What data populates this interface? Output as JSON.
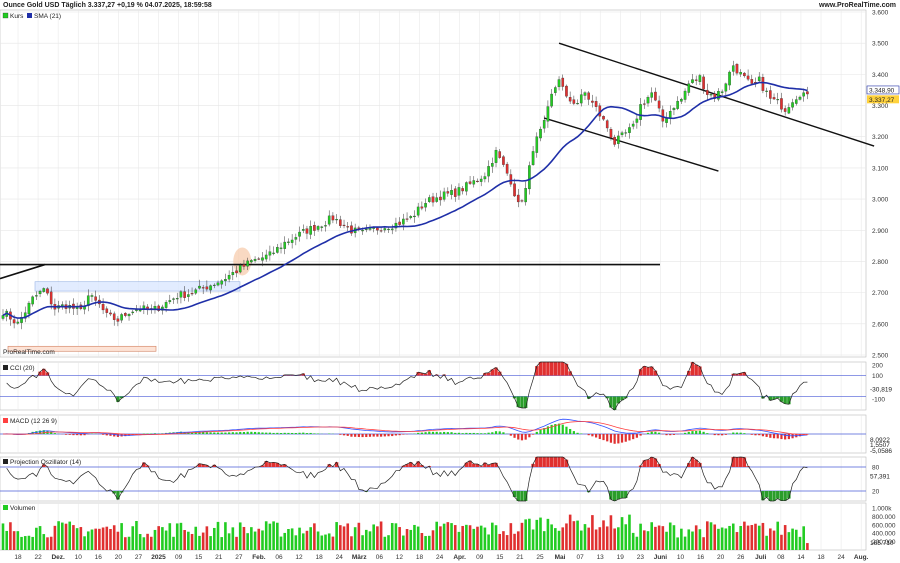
{
  "header": {
    "title": "Ounce Gold USD Täglich 3.337,27 +0,19 % 04.07.2025, 18:59:58",
    "brand": "www.ProRealTime.com"
  },
  "colors": {
    "up": "#22cc22",
    "down": "#e03030",
    "sma": "#1f2fa8",
    "grid": "#e6e6e6",
    "axis_bg": "#ffffff",
    "osc_line": "#222222",
    "band": "#4a5bd8",
    "macd_line": "#3050ff",
    "signal_line": "#ff4040",
    "last_price": "#ffd23c",
    "sma_badge": "#ffffff"
  },
  "watermark": "ProRealTime.com",
  "panels": {
    "price": {
      "legend": [
        "Kurs",
        "SMA (21)"
      ],
      "yticks": [
        "3.600",
        "3.500",
        "3.400",
        "3.300",
        "3.200",
        "3.100",
        "3.000",
        "2.900",
        "2.800",
        "2.700",
        "2.600",
        "2.500"
      ],
      "last_price_label": "3.337,27",
      "sma_label": "3.348,90"
    },
    "cci": {
      "legend": "CCI (20)",
      "yticks": [
        "200",
        "100",
        "-100"
      ],
      "value_label": "-30,819"
    },
    "macd": {
      "legend": "MACD (12 26 9)",
      "labels": [
        "8,0922",
        "1,5507",
        "-5,0586"
      ]
    },
    "proj": {
      "legend": "Projection Oszillator (14)",
      "yticks": [
        "80",
        "20"
      ],
      "value_label": "57,391"
    },
    "vol": {
      "legend": "Volumen",
      "yticks": [
        "1.000k",
        "800.000",
        "600.000",
        "400.000",
        "200.000"
      ],
      "value_label": "165.710"
    }
  },
  "xaxis": {
    "ticks": [
      "18",
      "22",
      "Dez.",
      "10",
      "16",
      "20",
      "27",
      "2025",
      "09",
      "15",
      "21",
      "27",
      "Feb.",
      "06",
      "12",
      "18",
      "24",
      "März",
      "06",
      "12",
      "18",
      "24",
      "Apr.",
      "09",
      "15",
      "21",
      "25",
      "Mai",
      "07",
      "13",
      "19",
      "23",
      "Juni",
      "10",
      "16",
      "20",
      "26",
      "Juli",
      "08",
      "14",
      "18",
      "24",
      "Aug."
    ]
  },
  "chart_data": {
    "type": "candlestick",
    "title": "Ounce Gold USD Täglich",
    "ylim": [
      2500,
      3600
    ],
    "price_keypoints": [
      [
        0,
        2640
      ],
      [
        4,
        2600
      ],
      [
        8,
        2680
      ],
      [
        11,
        2710
      ],
      [
        14,
        2650
      ],
      [
        17,
        2660
      ],
      [
        21,
        2640
      ],
      [
        23,
        2690
      ],
      [
        26,
        2660
      ],
      [
        28,
        2625
      ],
      [
        31,
        2612
      ],
      [
        34,
        2640
      ],
      [
        37,
        2650
      ],
      [
        40,
        2640
      ],
      [
        43,
        2660
      ],
      [
        47,
        2690
      ],
      [
        51,
        2700
      ],
      [
        55,
        2720
      ],
      [
        59,
        2740
      ],
      [
        63,
        2770
      ],
      [
        67,
        2800
      ],
      [
        72,
        2820
      ],
      [
        76,
        2860
      ],
      [
        82,
        2900
      ],
      [
        86,
        2920
      ],
      [
        89,
        2940
      ],
      [
        94,
        2900
      ],
      [
        97,
        2890
      ],
      [
        102,
        2910
      ],
      [
        106,
        2920
      ],
      [
        110,
        2940
      ],
      [
        114,
        2990
      ],
      [
        118,
        3010
      ],
      [
        122,
        3020
      ],
      [
        127,
        3055
      ],
      [
        130,
        3080
      ],
      [
        133,
        3150
      ],
      [
        137,
        3060
      ],
      [
        139,
        2980
      ],
      [
        141,
        3030
      ],
      [
        143,
        3165
      ],
      [
        146,
        3240
      ],
      [
        148,
        3330
      ],
      [
        150,
        3390
      ],
      [
        152,
        3320
      ],
      [
        155,
        3310
      ],
      [
        157,
        3340
      ],
      [
        160,
        3290
      ],
      [
        163,
        3230
      ],
      [
        165,
        3180
      ],
      [
        167,
        3200
      ],
      [
        170,
        3230
      ],
      [
        172,
        3300
      ],
      [
        175,
        3340
      ],
      [
        178,
        3250
      ],
      [
        181,
        3300
      ],
      [
        183,
        3320
      ],
      [
        185,
        3370
      ],
      [
        188,
        3390
      ],
      [
        190,
        3340
      ],
      [
        192,
        3330
      ],
      [
        194,
        3350
      ],
      [
        197,
        3430
      ],
      [
        199,
        3400
      ],
      [
        202,
        3360
      ],
      [
        204,
        3380
      ],
      [
        207,
        3320
      ],
      [
        209,
        3310
      ],
      [
        211,
        3290
      ],
      [
        213,
        3320
      ],
      [
        215,
        3340
      ],
      [
        217,
        3337
      ]
    ],
    "sma_period": 21,
    "support_line": 2790,
    "channel": {
      "upper": [
        [
          150,
          3500
        ],
        [
          235,
          3170
        ]
      ],
      "lower": [
        [
          146,
          3260
        ],
        [
          193,
          3090
        ]
      ]
    },
    "indicators": [
      "CCI (20)",
      "MACD (12 26 9)",
      "Projection Oszillator (14)",
      "Volumen"
    ]
  }
}
